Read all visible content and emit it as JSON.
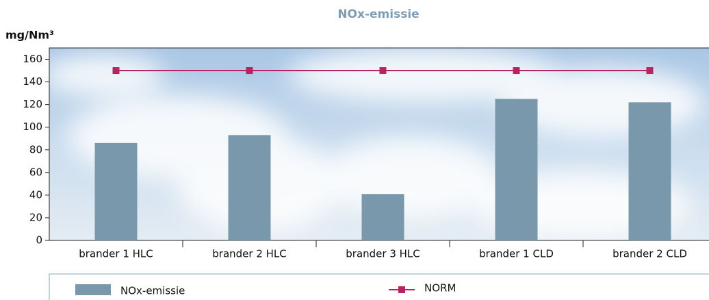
{
  "chart_data": {
    "type": "bar",
    "title": "NOx-emissie",
    "y_label": "mg/Nm³",
    "categories": [
      "brander 1 HLC",
      "brander 2 HLC",
      "brander 3 HLC",
      "brander 1 CLD",
      "brander 2 CLD"
    ],
    "series": [
      {
        "name": "NOx-emissie",
        "type": "bar",
        "color": "#7a98ab",
        "values": [
          86,
          93,
          41,
          125,
          122
        ]
      },
      {
        "name": "NORM",
        "type": "line",
        "color": "#b8245f",
        "values": [
          150,
          150,
          150,
          150,
          150
        ]
      }
    ],
    "ylim": [
      0,
      170
    ],
    "yticks": [
      0,
      20,
      40,
      60,
      80,
      100,
      120,
      140,
      160
    ]
  }
}
